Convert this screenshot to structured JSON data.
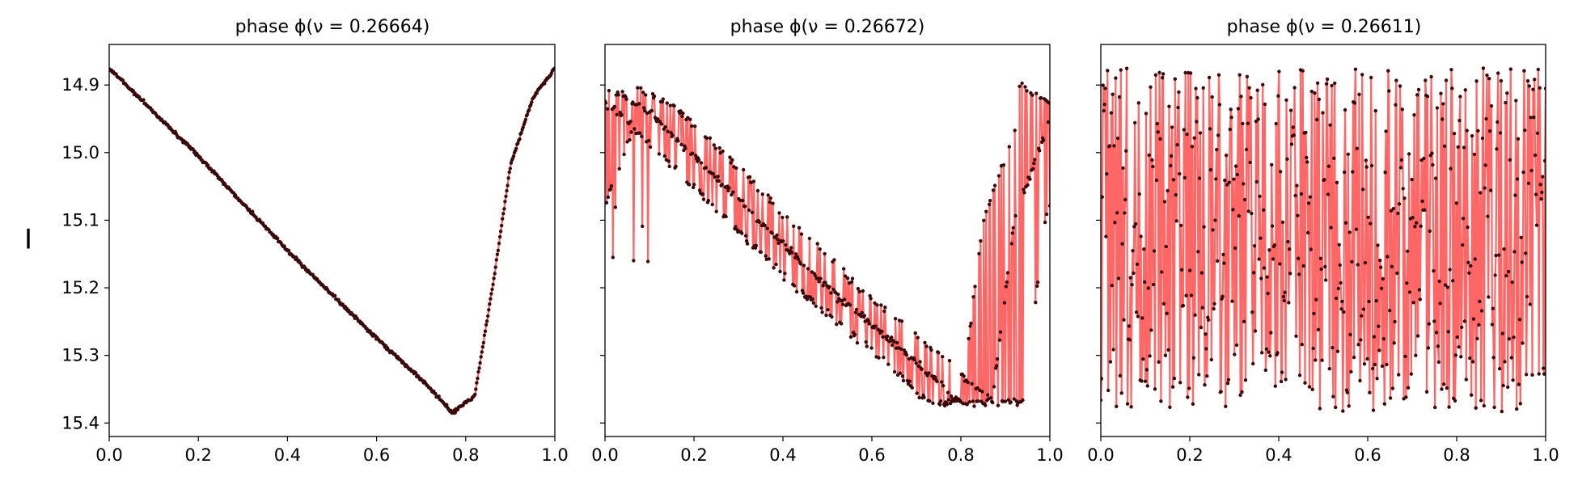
{
  "chart_data": {
    "type": "line",
    "ylabel": "I",
    "ylim": [
      15.42,
      14.84
    ],
    "y_inverted": true,
    "xlim": [
      0.0,
      1.0
    ],
    "x_ticks": [
      "0.0",
      "0.2",
      "0.4",
      "0.6",
      "0.8",
      "1.0"
    ],
    "y_ticks": [
      "14.9",
      "15.0",
      "15.1",
      "15.2",
      "15.3",
      "15.4"
    ],
    "line_color": "#ff6666",
    "marker_color": "#3a0a0a",
    "panels": [
      {
        "title": "phase ϕ(ν = 0.26664)",
        "pattern": "clean",
        "key_points": [
          [
            0.0,
            14.875
          ],
          [
            0.2,
            15.005
          ],
          [
            0.4,
            15.145
          ],
          [
            0.6,
            15.275
          ],
          [
            0.7,
            15.335
          ],
          [
            0.77,
            15.385
          ],
          [
            0.82,
            15.36
          ],
          [
            0.86,
            15.2
          ],
          [
            0.9,
            15.02
          ],
          [
            0.95,
            14.92
          ],
          [
            1.0,
            14.875
          ]
        ]
      },
      {
        "title": "phase ϕ(ν = 0.26672)",
        "pattern": "slightly-smeared",
        "key_points": [
          [
            0.0,
            14.9
          ],
          [
            0.1,
            14.94
          ],
          [
            0.3,
            15.07
          ],
          [
            0.5,
            15.2
          ],
          [
            0.7,
            15.31
          ],
          [
            0.8,
            15.37
          ],
          [
            0.87,
            15.37
          ],
          [
            0.92,
            15.1
          ],
          [
            1.0,
            14.95
          ]
        ]
      },
      {
        "title": "phase ϕ(ν = 0.26611)",
        "pattern": "scrambled",
        "y_range_of_points": [
          14.88,
          15.39
        ]
      }
    ]
  }
}
